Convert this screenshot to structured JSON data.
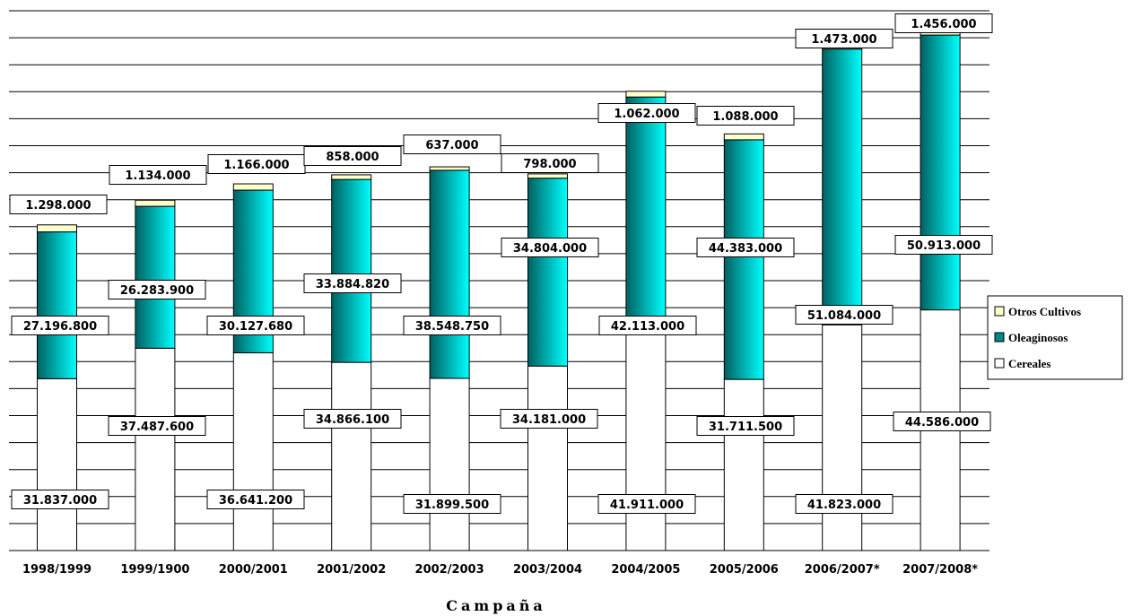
{
  "chart_data": {
    "type": "bar",
    "stacked": true,
    "title": "",
    "xlabel": "Campaña",
    "ylabel": "",
    "ylim": [
      0,
      100000000
    ],
    "grid": true,
    "legend_position": "right",
    "categories": [
      "1998/1999",
      "1999/1900",
      "2000/2001",
      "2001/2002",
      "2002/2003",
      "2003/2004",
      "2004/2005",
      "2005/2006",
      "2006/2007*",
      "2007/2008*"
    ],
    "series": [
      {
        "name": "Cereales",
        "color": "#ffffff",
        "values": [
          31837000,
          37487600,
          36641200,
          34866100,
          31899500,
          34181000,
          41911000,
          31711500,
          41823000,
          44586000
        ],
        "labels": [
          "31.837.000",
          "37.487.600",
          "36.641.200",
          "34.866.100",
          "31.899.500",
          "34.181.000",
          "41.911.000",
          "31.711.500",
          "41.823.000",
          "44.586.000"
        ]
      },
      {
        "name": "Oleaginosos",
        "color": "#00c8c8",
        "values": [
          27196800,
          26283900,
          30127680,
          33884820,
          38548750,
          34804000,
          42113000,
          44383000,
          51084000,
          50913000
        ],
        "labels": [
          "27.196.800",
          "26.283.900",
          "30.127.680",
          "33.884.820",
          "38.548.750",
          "34.804.000",
          "42.113.000",
          "44.383.000",
          "51.084.000",
          "50.913.000"
        ]
      },
      {
        "name": "Otros Cultivos",
        "color": "#ffffcc",
        "values": [
          1298000,
          1134000,
          1166000,
          858000,
          637000,
          798000,
          1062000,
          1088000,
          1473000,
          1456000
        ],
        "labels": [
          "1.298.000",
          "1.134.000",
          "1.166.000",
          "858.000",
          "637.000",
          "798.000",
          "1.062.000",
          "1.088.000",
          "1.473.000",
          "1.456.000"
        ]
      }
    ],
    "legend_order": [
      "Otros Cultivos",
      "Oleaginosos",
      "Cereales"
    ]
  }
}
